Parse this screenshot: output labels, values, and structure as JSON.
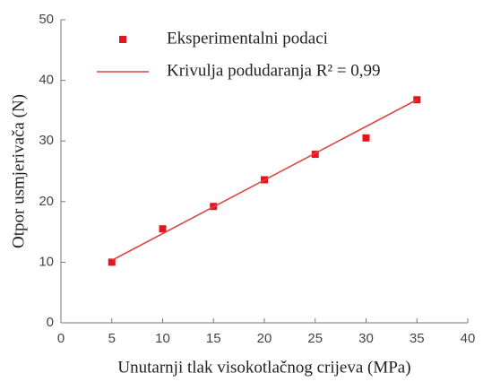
{
  "chart_data": {
    "type": "scatter",
    "xlabel": "Unutarnji tlak visokotlačnog crijeva (MPa)",
    "ylabel": "Otpor usmjerivača (N)",
    "xlim": [
      0,
      40
    ],
    "xticks": [
      0,
      5,
      10,
      15,
      20,
      25,
      30,
      35,
      40
    ],
    "ylim": [
      0,
      50
    ],
    "yticks": [
      0,
      10,
      20,
      30,
      40,
      50
    ],
    "series": [
      {
        "name": "Eksperimentalni podaci",
        "color": "#e8141b",
        "mode": "markers",
        "x": [
          5,
          10,
          15,
          20,
          25,
          30,
          35
        ],
        "values": [
          10,
          15.5,
          19.2,
          23.6,
          27.8,
          30.5,
          36.8
        ]
      },
      {
        "name": "Krivulja podudaranja R² = 0,99",
        "color": "#d9463f",
        "mode": "line",
        "x": [
          5,
          35
        ],
        "values": [
          10.3,
          36.8
        ]
      }
    ]
  }
}
